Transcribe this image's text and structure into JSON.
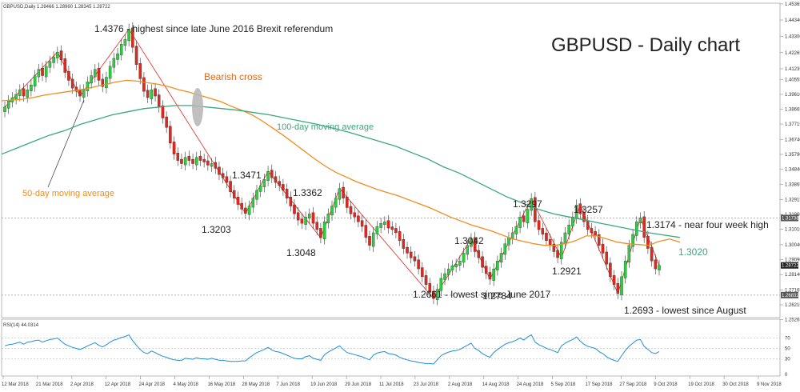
{
  "chart_data": [
    {
      "type": "candlestick",
      "header": "GBPUSD,Daily  1.28466 1.28960 1.28345 1.28722",
      "title": "GBPUSD - Daily chart",
      "ylim": [
        1.2545,
        1.4536
      ],
      "y_ticks": [
        "1.45365",
        "1.44340",
        "1.43300",
        "1.42265",
        "1.41235",
        "1.40555",
        "1.39610",
        "1.38665",
        "1.37715",
        "1.36740",
        "1.35790",
        "1.34840",
        "1.33865",
        "1.32915",
        "1.31960",
        "1.31016",
        "1.30040",
        "1.29090",
        "1.28140",
        "1.27165",
        "1.26215",
        "1.25265"
      ],
      "price_labels": [
        {
          "text": "1.31738",
          "value": 1.31738,
          "color": "#555555"
        },
        {
          "text": "1.28722",
          "value": 1.28722,
          "color": "#222222"
        },
        {
          "text": "1.26832",
          "value": 1.26832,
          "color": "#555555"
        }
      ],
      "x_ticks": [
        "12 Mar 2018",
        "21 Mar 2018",
        "2 Apr 2018",
        "12 Apr 2018",
        "24 Apr 2018",
        "4 May 2018",
        "16 May 2018",
        "28 May 2018",
        "7 Jun 2018",
        "19 Jun 2018",
        "29 Jun 2018",
        "11 Jul 2018",
        "23 Jul 2018",
        "2 Aug 2018",
        "14 Aug 2018",
        "24 Aug 2018",
        "5 Sep 2018",
        "17 Sep 2018",
        "27 Sep 2018",
        "9 Oct 2018",
        "19 Oct 2018",
        "30 Oct 2018",
        "9 Nov 2018"
      ],
      "close": [
        1.388,
        1.392,
        1.394,
        1.396,
        1.399,
        1.395,
        1.399,
        1.402,
        1.408,
        1.412,
        1.408,
        1.414,
        1.417,
        1.42,
        1.423,
        1.418,
        1.41,
        1.405,
        1.4,
        1.398,
        1.395,
        1.399,
        1.404,
        1.408,
        1.412,
        1.405,
        1.401,
        1.407,
        1.414,
        1.419,
        1.422,
        1.428,
        1.431,
        1.4376,
        1.426,
        1.415,
        1.406,
        1.398,
        1.394,
        1.399,
        1.395,
        1.388,
        1.381,
        1.375,
        1.365,
        1.358,
        1.354,
        1.352,
        1.356,
        1.354,
        1.352,
        1.356,
        1.354,
        1.353,
        1.351,
        1.352,
        1.349,
        1.345,
        1.343,
        1.34,
        1.334,
        1.33,
        1.326,
        1.323,
        1.3203,
        1.325,
        1.33,
        1.335,
        1.338,
        1.342,
        1.3471,
        1.343,
        1.34,
        1.338,
        1.335,
        1.33,
        1.325,
        1.32,
        1.316,
        1.314,
        1.318,
        1.32,
        1.314,
        1.31,
        1.3048,
        1.315,
        1.32,
        1.325,
        1.33,
        1.3362,
        1.33,
        1.324,
        1.32,
        1.318,
        1.315,
        1.312,
        1.305,
        1.3,
        1.308,
        1.312,
        1.314,
        1.315,
        1.311,
        1.31,
        1.308,
        1.303,
        1.298,
        1.295,
        1.292,
        1.29,
        1.285,
        1.28,
        1.275,
        1.27,
        1.2661,
        1.272,
        1.279,
        1.282,
        1.285,
        1.287,
        1.288,
        1.29,
        1.295,
        1.3,
        1.3042,
        1.296,
        1.292,
        1.286,
        1.282,
        1.2784,
        1.285,
        1.29,
        1.295,
        1.301,
        1.305,
        1.308,
        1.312,
        1.318,
        1.315,
        1.323,
        1.3297,
        1.315,
        1.31,
        1.307,
        1.303,
        1.3,
        1.296,
        1.2921,
        1.302,
        1.308,
        1.313,
        1.318,
        1.3257,
        1.32,
        1.315,
        1.31,
        1.308,
        1.306,
        1.3,
        1.295,
        1.288,
        1.28,
        1.275,
        1.2693,
        1.28,
        1.29,
        1.3,
        1.307,
        1.315,
        1.3174,
        1.305,
        1.298,
        1.29,
        1.285,
        1.2872
      ],
      "series": [
        {
          "name": "50-day moving average",
          "color": "#f28c1e",
          "start_index": 0,
          "values": [
            1.392,
            1.3925,
            1.393,
            1.394,
            1.3955,
            1.3965,
            1.3975,
            1.3985,
            1.3995,
            1.401,
            1.4025,
            1.404,
            1.405,
            1.4045,
            1.4035,
            1.4025,
            1.401,
            1.399,
            1.3975,
            1.3955,
            1.3935,
            1.3915,
            1.3885,
            1.386,
            1.383,
            1.379,
            1.3745,
            1.37,
            1.365,
            1.36,
            1.355,
            1.3505,
            1.3465,
            1.3435,
            1.3405,
            1.338,
            1.3355,
            1.3335,
            1.3315,
            1.329,
            1.3265,
            1.324,
            1.321,
            1.318,
            1.3155,
            1.313,
            1.311,
            1.309,
            1.3065,
            1.304,
            1.3025,
            1.301,
            1.3,
            1.3,
            1.301,
            1.303,
            1.306,
            1.306,
            1.304,
            1.302,
            1.301,
            1.3005,
            1.3,
            1.3025,
            1.304,
            1.302
          ]
        },
        {
          "name": "100-day moving average",
          "color": "#3aa87c",
          "start_index": 0,
          "values": [
            1.358,
            1.362,
            1.366,
            1.37,
            1.373,
            1.377,
            1.38,
            1.383,
            1.385,
            1.387,
            1.388,
            1.389,
            1.389,
            1.388,
            1.387,
            1.386,
            1.3845,
            1.383,
            1.381,
            1.379,
            1.377,
            1.3745,
            1.372,
            1.369,
            1.366,
            1.363,
            1.359,
            1.355,
            1.35,
            1.346,
            1.341,
            1.336,
            1.331,
            1.327,
            1.323,
            1.32,
            1.318,
            1.316,
            1.314,
            1.312,
            1.31,
            1.308,
            1.3065,
            1.305
          ]
        }
      ],
      "annotations": [
        {
          "text": "1.4376 - highest since late June 2016 Brexit referendum",
          "color": "#222222"
        },
        {
          "text": "Bearish cross",
          "color": "#e06a1a"
        },
        {
          "text": "100-day moving average",
          "color": "#3aa87c"
        },
        {
          "text": "50-day moving average",
          "color": "#f28c1e"
        },
        {
          "text": "1.3471",
          "color": "#222222"
        },
        {
          "text": "1.3203",
          "color": "#222222"
        },
        {
          "text": "1.3362",
          "color": "#222222"
        },
        {
          "text": "1.3048",
          "color": "#222222"
        },
        {
          "text": "1.2661 - lowest since June 2017",
          "color": "#222222"
        },
        {
          "text": "1.3042",
          "color": "#222222"
        },
        {
          "text": "1.2784",
          "color": "#222222"
        },
        {
          "text": "1.3297",
          "color": "#222222"
        },
        {
          "text": "1.3257",
          "color": "#222222"
        },
        {
          "text": "1.2921",
          "color": "#222222"
        },
        {
          "text": "1.3174 - near four week high",
          "color": "#222222"
        },
        {
          "text": "1.3020",
          "color": "#3aa87c"
        },
        {
          "text": "1.2693 - lowest since August",
          "color": "#222222"
        }
      ],
      "colors": {
        "bull": "#2ecc40",
        "bear": "#e0281e",
        "trend": "#e0281e"
      }
    },
    {
      "type": "line",
      "header": "RSI(14) 44.0314",
      "ylim": [
        0,
        100
      ],
      "y_ticks": [
        "70",
        "50",
        "30",
        "0"
      ],
      "values": [
        55,
        57,
        58,
        60,
        62,
        58,
        62,
        63,
        65,
        66,
        62,
        65,
        67,
        68,
        70,
        64,
        58,
        55,
        52,
        50,
        48,
        51,
        55,
        58,
        61,
        56,
        53,
        57,
        62,
        66,
        68,
        71,
        73,
        76,
        65,
        56,
        48,
        42,
        40,
        45,
        42,
        38,
        35,
        33,
        30,
        28,
        27,
        27,
        31,
        30,
        29,
        32,
        30,
        30,
        29,
        31,
        29,
        27,
        27,
        26,
        25,
        25,
        25,
        26,
        26,
        32,
        37,
        42,
        45,
        48,
        52,
        47,
        44,
        43,
        40,
        37,
        34,
        31,
        30,
        30,
        34,
        36,
        31,
        29,
        27,
        38,
        43,
        47,
        51,
        55,
        48,
        42,
        40,
        38,
        36,
        34,
        31,
        28,
        37,
        41,
        43,
        44,
        40,
        39,
        37,
        33,
        30,
        28,
        26,
        25,
        23,
        22,
        21,
        21,
        20,
        28,
        36,
        40,
        43,
        45,
        46,
        48,
        52,
        56,
        60,
        50,
        46,
        40,
        36,
        33,
        42,
        48,
        53,
        58,
        61,
        63,
        66,
        70,
        66,
        72,
        76,
        62,
        57,
        54,
        50,
        48,
        45,
        42,
        55,
        60,
        64,
        67,
        72,
        64,
        58,
        54,
        52,
        50,
        44,
        40,
        34,
        30,
        27,
        25,
        36,
        46,
        54,
        60,
        66,
        67,
        54,
        48,
        42,
        40,
        44
      ]
    }
  ]
}
